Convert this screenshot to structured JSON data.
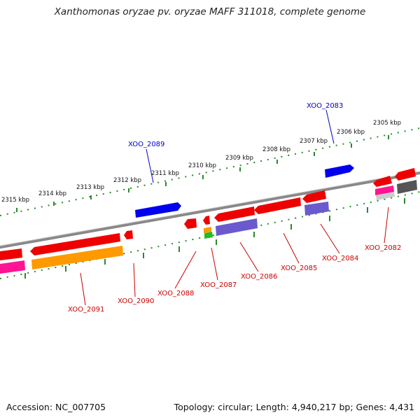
{
  "title": "Xanthomonas oryzae pv. oryzae MAFF 311018, complete genome",
  "footer": {
    "accession": "Accession: NC_007705",
    "topology": "Topology: circular; Length: 4,940,217 bp; Genes: 4,431"
  },
  "ruler": {
    "ticks": [
      "2305 kbp",
      "2306 kbp",
      "2307 kbp",
      "2308 kbp",
      "2309 kbp",
      "2310 kbp",
      "2311 kbp",
      "2312 kbp",
      "2313 kbp",
      "2314 kbp",
      "2315 kbp"
    ]
  },
  "labels": {
    "forward": [
      "XOO_2083",
      "XOO_2089"
    ],
    "reverse": [
      "XOO_2082",
      "XOO_2084",
      "XOO_2085",
      "XOO_2086",
      "XOO_2087",
      "XOO_2088",
      "XOO_2090",
      "XOO_2091"
    ]
  },
  "colors": {
    "forward_label": "#0000cc",
    "reverse_label": "#cc0000",
    "backbone": "#888888",
    "ruler": "#2a8a2a",
    "gene_red": "#ee0000",
    "gene_blue": "#0000ee",
    "gene_orange": "#ff9900",
    "gene_purple": "#6a5acd",
    "gene_pink": "#ff1493",
    "gene_grey": "#555555",
    "gene_green": "#22bb22"
  }
}
